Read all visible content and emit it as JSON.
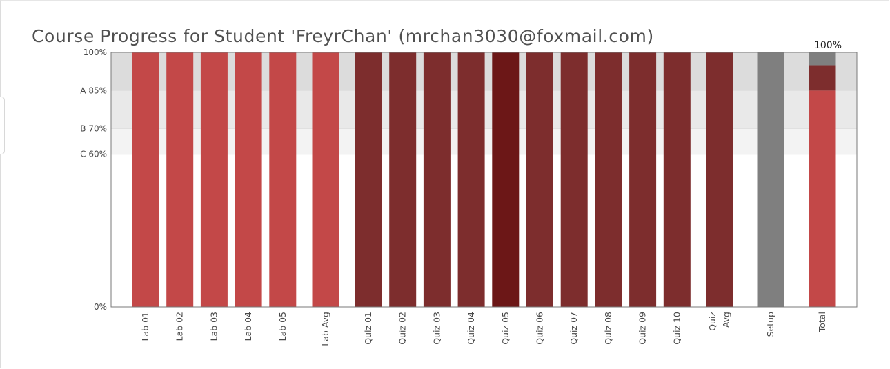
{
  "chart_data": {
    "type": "bar",
    "title": "Course Progress for Student 'FreyrChan' (mrchan3030@foxmail.com)",
    "xlabel": "",
    "ylabel": "",
    "ylim": [
      0,
      100
    ],
    "grid": false,
    "yticks": [
      {
        "value": 100,
        "label": "100%"
      },
      {
        "value": 85,
        "label": "A 85%"
      },
      {
        "value": 70,
        "label": "B 70%"
      },
      {
        "value": 60,
        "label": "C 60%"
      },
      {
        "value": 0,
        "label": "0%"
      }
    ],
    "grade_bands": [
      {
        "from": 85,
        "to": 100,
        "color": "#dcdcdc"
      },
      {
        "from": 70,
        "to": 85,
        "color": "#e9e9e9"
      },
      {
        "from": 60,
        "to": 70,
        "color": "#f3f3f3"
      }
    ],
    "categories": [
      {
        "label": "Lab 01",
        "value": 100,
        "color": "#c34848"
      },
      {
        "label": "Lab 02",
        "value": 100,
        "color": "#c34848"
      },
      {
        "label": "Lab 03",
        "value": 100,
        "color": "#c34848"
      },
      {
        "label": "Lab 04",
        "value": 100,
        "color": "#c34848"
      },
      {
        "label": "Lab 05",
        "value": 100,
        "color": "#c34848"
      },
      {
        "label": "Lab Avg",
        "value": 100,
        "color": "#c34848"
      },
      {
        "label": "Quiz 01",
        "value": 100,
        "color": "#7d2d2d"
      },
      {
        "label": "Quiz 02",
        "value": 100,
        "color": "#7d2d2d"
      },
      {
        "label": "Quiz 03",
        "value": 100,
        "color": "#7d2d2d"
      },
      {
        "label": "Quiz 04",
        "value": 100,
        "color": "#7d2d2d"
      },
      {
        "label": "Quiz 05",
        "value": 100,
        "color": "#6c1717"
      },
      {
        "label": "Quiz 06",
        "value": 100,
        "color": "#7d2d2d"
      },
      {
        "label": "Quiz 07",
        "value": 100,
        "color": "#7d2d2d"
      },
      {
        "label": "Quiz 08",
        "value": 100,
        "color": "#7d2d2d"
      },
      {
        "label": "Quiz 09",
        "value": 100,
        "color": "#7d2d2d"
      },
      {
        "label": "Quiz 10",
        "value": 100,
        "color": "#7d2d2d"
      },
      {
        "label": "Quiz Avg",
        "value": 100,
        "color": "#7d2d2d"
      },
      {
        "label": "Setup",
        "value": 100,
        "color": "#7f7f7f"
      }
    ],
    "total": {
      "label": "Total",
      "annotation": "100%",
      "segments": [
        {
          "value": 85,
          "color": "#c34848"
        },
        {
          "value": 10,
          "color": "#7d2d2d"
        },
        {
          "value": 5,
          "color": "#7f7f7f"
        }
      ]
    }
  }
}
